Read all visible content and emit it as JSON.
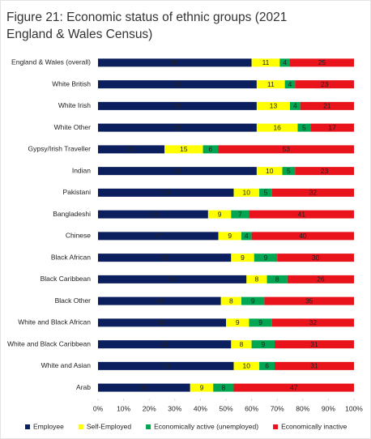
{
  "chart_data": {
    "type": "stacked-bar-horizontal",
    "title": "Figure 21: Economic status of ethnic groups (2021 England & Wales Census)",
    "categories": [
      "England & Wales (overall)",
      "White British",
      "White Irish",
      "White Other",
      "Gypsy/Irish Traveller",
      "Indian",
      "Pakistani",
      "Bangladeshi",
      "Chinese",
      "Black African",
      "Black Caribbean",
      "Black Other",
      "White and Black African",
      "White and Black Caribbean",
      "White and Asian",
      "Arab"
    ],
    "series": [
      {
        "name": "Employee",
        "color": "#0b1f5e",
        "values": [
          60,
          62,
          62,
          62,
          26,
          62,
          53,
          43,
          47,
          52,
          58,
          48,
          50,
          52,
          53,
          36
        ]
      },
      {
        "name": "Self-Employed",
        "color": "#ffff00",
        "values": [
          11,
          11,
          13,
          16,
          15,
          10,
          10,
          9,
          9,
          9,
          8,
          8,
          9,
          8,
          10,
          9
        ]
      },
      {
        "name": "Economically active (unemployed)",
        "color": "#00a651",
        "values": [
          4,
          4,
          4,
          5,
          6,
          5,
          5,
          7,
          4,
          9,
          8,
          9,
          9,
          9,
          6,
          8
        ]
      },
      {
        "name": "Economically inactive",
        "color": "#e8131b",
        "values": [
          25,
          23,
          21,
          17,
          53,
          23,
          32,
          41,
          40,
          30,
          26,
          35,
          32,
          31,
          31,
          47
        ]
      }
    ],
    "xlim": [
      0,
      100
    ],
    "xticks": [
      {
        "value": 0,
        "label": "0%"
      },
      {
        "value": 10,
        "label": "10%"
      },
      {
        "value": 20,
        "label": "20%"
      },
      {
        "value": 30,
        "label": "30%"
      },
      {
        "value": 40,
        "label": "40%"
      },
      {
        "value": 50,
        "label": "50%"
      },
      {
        "value": 60,
        "label": "60%"
      },
      {
        "value": 70,
        "label": "70%"
      },
      {
        "value": 80,
        "label": "80%"
      },
      {
        "value": 90,
        "label": "90%"
      },
      {
        "value": 100,
        "label": "100%"
      }
    ],
    "legend": "bottom"
  }
}
